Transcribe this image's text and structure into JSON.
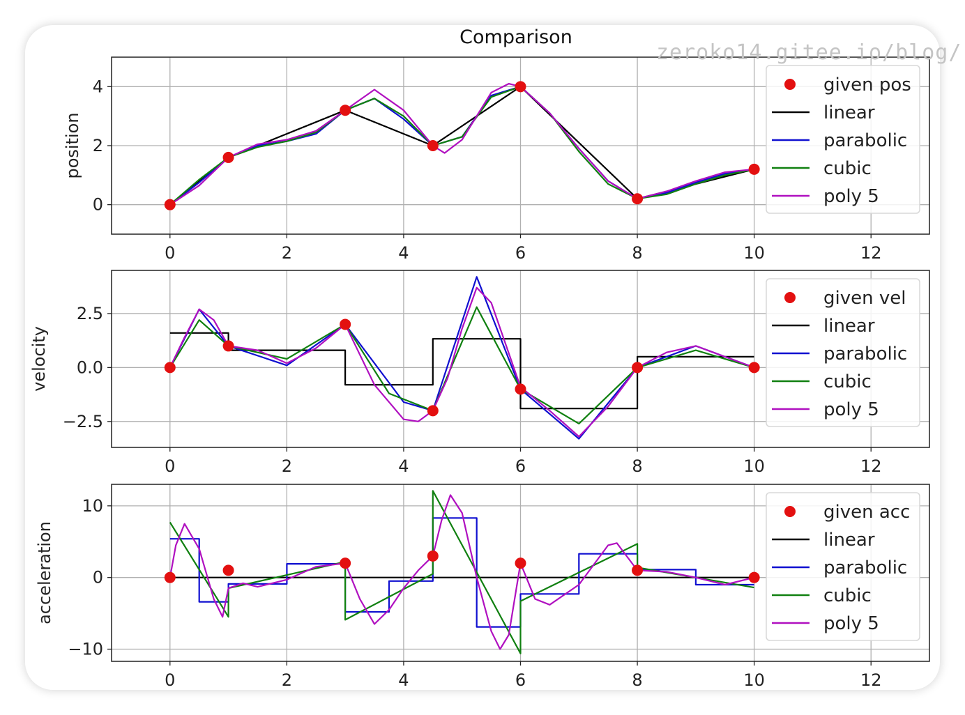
{
  "watermark": "zeroko14.gitee.io/blog/",
  "figure_title": "Comparison",
  "chart_data": [
    {
      "type": "line",
      "id": "position",
      "ylabel": "position",
      "xlim": [
        -1,
        13
      ],
      "ylim": [
        -1,
        5
      ],
      "xticks": [
        0,
        2,
        4,
        6,
        8,
        10,
        12
      ],
      "yticks": [
        {
          "v": 0,
          "label": "0"
        },
        {
          "v": 2,
          "label": "2"
        },
        {
          "v": 4,
          "label": "4"
        }
      ],
      "grid": true,
      "legend_position": "top-right",
      "points": {
        "name": "given pos",
        "color": "#e31010",
        "x": [
          0,
          1,
          3,
          4.5,
          6,
          8,
          10
        ],
        "y": [
          0,
          1.6,
          3.2,
          2.0,
          4.0,
          0.2,
          1.2
        ]
      },
      "series": [
        {
          "name": "linear",
          "color": "#000000",
          "x": [
            0,
            1,
            3,
            4.5,
            6,
            8,
            10
          ],
          "y": [
            0,
            1.6,
            3.2,
            2.0,
            4.0,
            0.2,
            1.2
          ]
        },
        {
          "name": "parabolic",
          "color": "#1010d0",
          "x": [
            0,
            0.5,
            1,
            1.5,
            2,
            2.5,
            3,
            3.5,
            4,
            4.5,
            5,
            5.5,
            6,
            6.5,
            7,
            7.5,
            8,
            8.5,
            9,
            9.5,
            10
          ],
          "y": [
            0,
            0.75,
            1.6,
            2.0,
            2.15,
            2.4,
            3.2,
            3.6,
            2.9,
            2.0,
            2.3,
            3.7,
            4.0,
            3.1,
            1.9,
            0.8,
            0.2,
            0.4,
            0.75,
            1.05,
            1.2
          ]
        },
        {
          "name": "cubic",
          "color": "#108010",
          "x": [
            0,
            0.5,
            1,
            1.5,
            2,
            2.5,
            3,
            3.5,
            4,
            4.5,
            5,
            5.5,
            6,
            6.5,
            7,
            7.5,
            8,
            8.5,
            9,
            9.5,
            10
          ],
          "y": [
            0,
            0.85,
            1.6,
            1.95,
            2.15,
            2.45,
            3.2,
            3.6,
            3.0,
            2.0,
            2.3,
            3.65,
            4.0,
            3.1,
            1.8,
            0.7,
            0.2,
            0.35,
            0.7,
            1.0,
            1.2
          ]
        },
        {
          "name": "poly 5",
          "color": "#b010c0",
          "x": [
            0,
            0.5,
            1,
            1.5,
            2,
            2.5,
            3,
            3.5,
            4,
            4.5,
            4.7,
            5,
            5.5,
            5.8,
            6,
            6.5,
            7,
            7.5,
            8,
            8.5,
            9,
            9.5,
            10
          ],
          "y": [
            0,
            0.65,
            1.6,
            2.05,
            2.2,
            2.5,
            3.2,
            3.9,
            3.2,
            2.0,
            1.75,
            2.2,
            3.8,
            4.1,
            4.0,
            3.1,
            1.9,
            0.8,
            0.2,
            0.45,
            0.8,
            1.1,
            1.2
          ]
        }
      ]
    },
    {
      "type": "line",
      "id": "velocity",
      "ylabel": "velocity",
      "xlim": [
        -1,
        13
      ],
      "ylim": [
        -3.7,
        4.5
      ],
      "xticks": [
        0,
        2,
        4,
        6,
        8,
        10,
        12
      ],
      "yticks": [
        {
          "v": 2.5,
          "label": "2.5"
        },
        {
          "v": 0,
          "label": "0.0"
        },
        {
          "v": -2.5,
          "label": "−2.5"
        }
      ],
      "grid": true,
      "legend_position": "top-right",
      "points": {
        "name": "given vel",
        "color": "#e31010",
        "x": [
          0,
          1,
          3,
          4.5,
          6,
          8,
          10
        ],
        "y": [
          0,
          1.0,
          2.0,
          -2.0,
          -1.0,
          0,
          0
        ]
      },
      "series": [
        {
          "name": "linear",
          "color": "#000000",
          "x": [
            0,
            1,
            1,
            3,
            3,
            4.5,
            4.5,
            6,
            6,
            8,
            8,
            10
          ],
          "y": [
            1.6,
            1.6,
            0.8,
            0.8,
            -0.8,
            -0.8,
            1.33,
            1.33,
            -1.9,
            -1.9,
            0.5,
            0.5
          ]
        },
        {
          "name": "parabolic",
          "color": "#1010d0",
          "x": [
            0,
            0.5,
            1,
            2,
            3,
            4,
            4.5,
            5.25,
            6,
            7,
            8,
            9,
            10
          ],
          "y": [
            0,
            2.7,
            1.0,
            0.1,
            2.0,
            -1.6,
            -2.0,
            4.2,
            -1.0,
            -3.3,
            0,
            1.0,
            0
          ]
        },
        {
          "name": "cubic",
          "color": "#108010",
          "x": [
            0,
            0.5,
            1,
            2,
            3,
            3.75,
            4.5,
            5.25,
            6,
            7,
            8,
            9,
            10
          ],
          "y": [
            0,
            2.2,
            1.0,
            0.4,
            2.0,
            -1.2,
            -2.0,
            2.8,
            -1.0,
            -2.6,
            0,
            0.8,
            0
          ]
        },
        {
          "name": "poly 5",
          "color": "#b010c0",
          "x": [
            0,
            0.25,
            0.5,
            0.75,
            1,
            1.5,
            2,
            2.5,
            3,
            3.5,
            4,
            4.25,
            4.5,
            4.75,
            5,
            5.25,
            5.5,
            6,
            6.5,
            7,
            7.5,
            8,
            8.5,
            9,
            9.5,
            10
          ],
          "y": [
            0,
            1.4,
            2.7,
            2.2,
            1.0,
            0.8,
            0.2,
            0.9,
            2.0,
            -0.8,
            -2.4,
            -2.5,
            -2.0,
            -0.5,
            1.8,
            3.7,
            3.0,
            -0.9,
            -2.0,
            -3.2,
            -1.8,
            0,
            0.7,
            1.0,
            0.5,
            0
          ]
        }
      ]
    },
    {
      "type": "line",
      "id": "acceleration",
      "ylabel": "acceleration",
      "xlim": [
        -1,
        13
      ],
      "ylim": [
        -11.7,
        13
      ],
      "xticks": [
        0,
        2,
        4,
        6,
        8,
        10,
        12
      ],
      "yticks": [
        {
          "v": 10,
          "label": "10"
        },
        {
          "v": 0,
          "label": "0"
        },
        {
          "v": -10,
          "label": "−10"
        }
      ],
      "grid": true,
      "legend_position": "top-right",
      "points": {
        "name": "given acc",
        "color": "#e31010",
        "x": [
          0,
          1,
          3,
          4.5,
          6,
          8,
          10
        ],
        "y": [
          0,
          1.0,
          2.0,
          3.0,
          2.0,
          1.0,
          0
        ]
      },
      "series": [
        {
          "name": "linear",
          "color": "#000000",
          "x": [
            0,
            10
          ],
          "y": [
            0,
            0
          ]
        },
        {
          "name": "parabolic",
          "color": "#1010d0",
          "x": [
            0,
            0.5,
            0.5,
            1,
            1,
            2,
            2,
            3,
            3,
            3.75,
            3.75,
            4.5,
            4.5,
            5.25,
            5.25,
            6,
            6,
            7,
            7,
            8,
            8,
            9,
            9,
            10
          ],
          "y": [
            5.4,
            5.4,
            -3.4,
            -3.4,
            -0.9,
            -0.9,
            1.9,
            1.9,
            -4.8,
            -4.8,
            -0.5,
            -0.5,
            8.3,
            8.3,
            -6.9,
            -6.9,
            -2.3,
            -2.3,
            3.3,
            3.3,
            1.1,
            1.1,
            -1.0,
            -1.0
          ]
        },
        {
          "name": "cubic",
          "color": "#108010",
          "x": [
            0,
            1,
            1,
            3,
            3,
            4.5,
            4.5,
            6,
            6,
            8,
            8,
            10
          ],
          "y": [
            7.7,
            -5.5,
            -1.5,
            2.2,
            -5.9,
            0.5,
            12.1,
            -10.6,
            -3.3,
            4.7,
            1.4,
            -1.4
          ]
        },
        {
          "name": "poly 5",
          "color": "#b010c0",
          "x": [
            0,
            0.1,
            0.25,
            0.5,
            0.75,
            0.9,
            1,
            1.25,
            1.5,
            2,
            2.5,
            3,
            3.25,
            3.5,
            3.75,
            4,
            4.25,
            4.5,
            4.65,
            4.8,
            5,
            5.25,
            5.5,
            5.65,
            5.8,
            6,
            6.25,
            6.5,
            7,
            7.5,
            7.65,
            8,
            8.5,
            9,
            9.5,
            10
          ],
          "y": [
            0,
            4.5,
            7.5,
            4.0,
            -3.0,
            -5.5,
            -1.5,
            -0.8,
            -1.3,
            -0.3,
            1.5,
            2.0,
            -3.0,
            -6.5,
            -4.5,
            -1.5,
            1.0,
            3.0,
            8.0,
            11.5,
            9.0,
            0,
            -7.5,
            -10.0,
            -8.0,
            2.0,
            -3.0,
            -3.8,
            -1.0,
            4.5,
            4.8,
            1.0,
            0.8,
            0,
            -1.0,
            0
          ]
        }
      ]
    }
  ]
}
